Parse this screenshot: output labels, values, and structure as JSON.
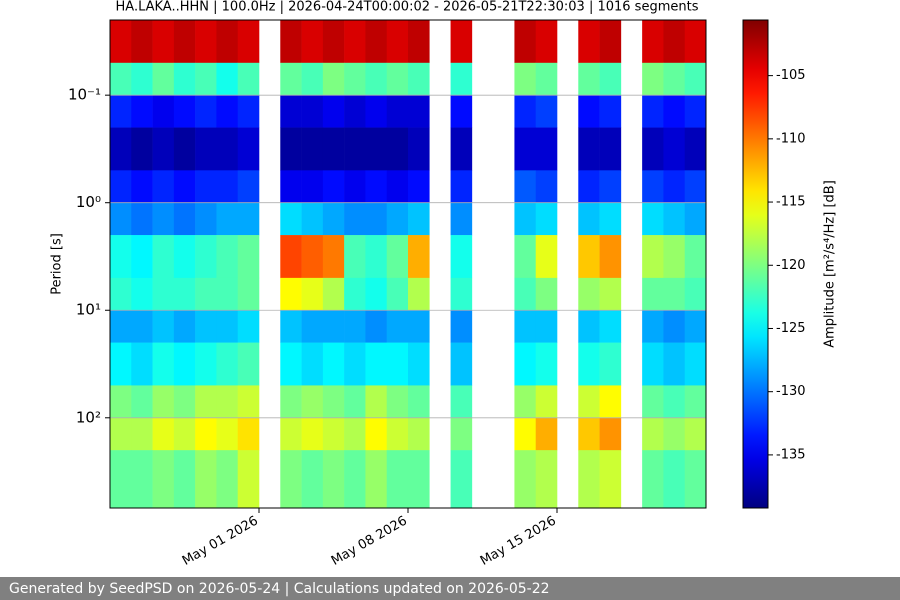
{
  "chart_data": {
    "type": "spectrogram",
    "title": "HA.LAKA..HHN | 100.0Hz | 2026-04-24T00:00:02 - 2026-05-21T22:30:03 | 1016 segments",
    "ylabel": "Period [s]",
    "colorbar_label": "Amplitude [m²/s⁴/Hz] [dB]",
    "colormap": "jet",
    "xlim": [
      "2026-04-24",
      "2026-05-22"
    ],
    "xticks": [
      {
        "value": "2026-05-01",
        "label": "May 01 2026"
      },
      {
        "value": "2026-05-08",
        "label": "May 08 2026"
      },
      {
        "value": "2026-05-15",
        "label": "May 15 2026"
      }
    ],
    "ylim": [
      0.02,
      690
    ],
    "ylog": true,
    "yinverted": true,
    "yticks": [
      {
        "value": 0.1,
        "label": "10⁻¹"
      },
      {
        "value": 1,
        "label": "10⁰"
      },
      {
        "value": 10,
        "label": "10¹"
      },
      {
        "value": 100,
        "label": "10²"
      }
    ],
    "grid": true,
    "clim": [
      -139.2,
      -100.6
    ],
    "cticks": [
      -105,
      -110,
      -115,
      -120,
      -125,
      -130,
      -135
    ],
    "x_bins": [
      "2026-04-24",
      "2026-04-25",
      "2026-04-26",
      "2026-04-27",
      "2026-04-28",
      "2026-04-29",
      "2026-04-30",
      "2026-05-01",
      "2026-05-02",
      "2026-05-03",
      "2026-05-04",
      "2026-05-05",
      "2026-05-06",
      "2026-05-07",
      "2026-05-08",
      "2026-05-09",
      "2026-05-10",
      "2026-05-11",
      "2026-05-12",
      "2026-05-13",
      "2026-05-14",
      "2026-05-15",
      "2026-05-16",
      "2026-05-17",
      "2026-05-18",
      "2026-05-19",
      "2026-05-20",
      "2026-05-21",
      "2026-05-22"
    ],
    "y_bins": [
      0.02,
      0.05,
      0.1,
      0.2,
      0.5,
      1,
      2,
      5,
      10,
      20,
      50,
      100,
      200,
      690
    ],
    "values": [
      [
        -104,
        -103,
        -104,
        -103,
        -104,
        -103,
        -104,
        null,
        -103,
        -104,
        -103,
        -104,
        -103,
        -104,
        -103,
        null,
        -104,
        null,
        null,
        -103,
        -104,
        null,
        -104,
        -103,
        null,
        -104,
        -103,
        -104
      ],
      [
        -122,
        -123,
        -121,
        -123,
        -122,
        -124,
        -122,
        null,
        -121,
        -122,
        -120,
        -121,
        -122,
        -121,
        -122,
        null,
        -123,
        null,
        null,
        -120,
        -121,
        null,
        -121,
        -122,
        null,
        -120,
        -121,
        -122
      ],
      [
        -133,
        -134,
        -135,
        -134,
        -133,
        -134,
        -133,
        null,
        -136,
        -136,
        -135,
        -136,
        -135,
        -136,
        -136,
        null,
        -134,
        null,
        null,
        -133,
        -132,
        null,
        -134,
        -133,
        null,
        -133,
        -134,
        -133
      ],
      [
        -137,
        -138,
        -137,
        -138,
        -137,
        -137,
        -136,
        null,
        -138,
        -138,
        -138,
        -138,
        -138,
        -138,
        -137,
        null,
        -137,
        null,
        null,
        -136,
        -136,
        null,
        -137,
        -137,
        null,
        -137,
        -136,
        -137
      ],
      [
        -133,
        -134,
        -133,
        -134,
        -133,
        -133,
        -132,
        null,
        -135,
        -135,
        -134,
        -135,
        -134,
        -135,
        -134,
        null,
        -133,
        null,
        null,
        -131,
        -132,
        null,
        -133,
        -132,
        null,
        -132,
        -133,
        -132
      ],
      [
        -129,
        -130,
        -129,
        -130,
        -129,
        -128,
        -128,
        null,
        -126,
        -127,
        -128,
        -129,
        -129,
        -128,
        -127,
        null,
        -129,
        null,
        null,
        -127,
        -126,
        null,
        -127,
        -126,
        null,
        -126,
        -127,
        -128
      ],
      [
        -124,
        -125,
        -123,
        -124,
        -123,
        -122,
        -121,
        null,
        -108,
        -109,
        -110,
        -122,
        -123,
        -121,
        -112,
        null,
        -124,
        null,
        null,
        -121,
        -116,
        null,
        -113,
        -111,
        null,
        -118,
        -119,
        -121
      ],
      [
        -123,
        -124,
        -123,
        -123,
        -122,
        -122,
        -121,
        null,
        -115,
        -116,
        -118,
        -123,
        -124,
        -122,
        -118,
        null,
        -123,
        null,
        null,
        -122,
        -120,
        null,
        -119,
        -118,
        null,
        -121,
        -121,
        -122
      ],
      [
        -128,
        -128,
        -127,
        -128,
        -127,
        -127,
        -126,
        null,
        -127,
        -128,
        -128,
        -128,
        -129,
        -128,
        -128,
        null,
        -129,
        null,
        null,
        -127,
        -127,
        null,
        -127,
        -126,
        null,
        -128,
        -129,
        -128
      ],
      [
        -125,
        -126,
        -124,
        -125,
        -124,
        -123,
        -122,
        null,
        -125,
        -126,
        -125,
        -126,
        -125,
        -125,
        -126,
        null,
        -127,
        null,
        null,
        -125,
        -124,
        null,
        -124,
        -123,
        null,
        -126,
        -127,
        -126
      ],
      [
        -120,
        -121,
        -119,
        -120,
        -118,
        -118,
        -117,
        null,
        -120,
        -119,
        -120,
        -121,
        -118,
        -120,
        -121,
        null,
        -122,
        null,
        null,
        -119,
        -117,
        null,
        -117,
        -115,
        null,
        -121,
        -122,
        -121
      ],
      [
        -118,
        -118,
        -116,
        -117,
        -115,
        -116,
        -114,
        null,
        -117,
        -116,
        -117,
        -118,
        -115,
        -117,
        -118,
        null,
        -120,
        null,
        null,
        -115,
        -112,
        null,
        -113,
        -111,
        null,
        -118,
        -119,
        -118
      ],
      [
        -121,
        -121,
        -120,
        -121,
        -119,
        -120,
        -117,
        null,
        -120,
        -121,
        -120,
        -121,
        -119,
        -121,
        -121,
        null,
        -122,
        null,
        null,
        -119,
        -118,
        null,
        -118,
        -117,
        null,
        -121,
        -122,
        -121
      ]
    ],
    "footer": "Generated by SeedPSD on 2026-05-24 | Calculations updated on 2026-05-22"
  }
}
